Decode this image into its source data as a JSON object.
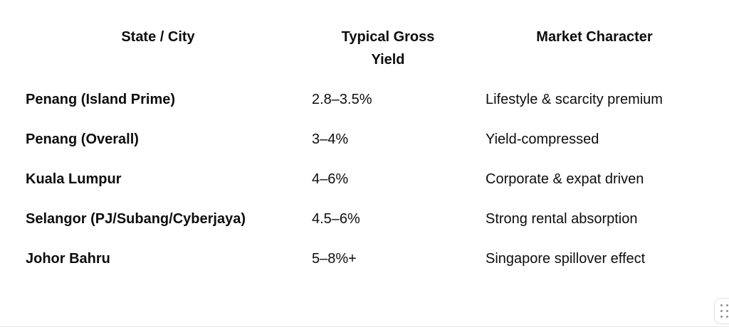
{
  "page": {
    "background_color": "#ffffff",
    "text_color": "#0d0d0d",
    "divider_color": "#e7e7e7"
  },
  "table": {
    "headers": [
      "State / City",
      "Typical Gross Yield",
      "Market Character"
    ],
    "rows": [
      {
        "state": "Penang (Island Prime)",
        "yield": "2.8–3.5%",
        "character": "Lifestyle & scarcity premium"
      },
      {
        "state": "Penang (Overall)",
        "yield": "3–4%",
        "character": "Yield-compressed"
      },
      {
        "state": "Kuala Lumpur",
        "yield": "4–6%",
        "character": "Corporate & expat driven"
      },
      {
        "state": "Selangor (PJ/Subang/Cyberjaya)",
        "yield": "4.5–6%",
        "character": "Strong rental absorption"
      },
      {
        "state": "Johor Bahru",
        "yield": "5–8%+",
        "character": "Singapore spillover effect"
      }
    ]
  },
  "icons": {
    "table_options": "grid-dots-icon"
  }
}
